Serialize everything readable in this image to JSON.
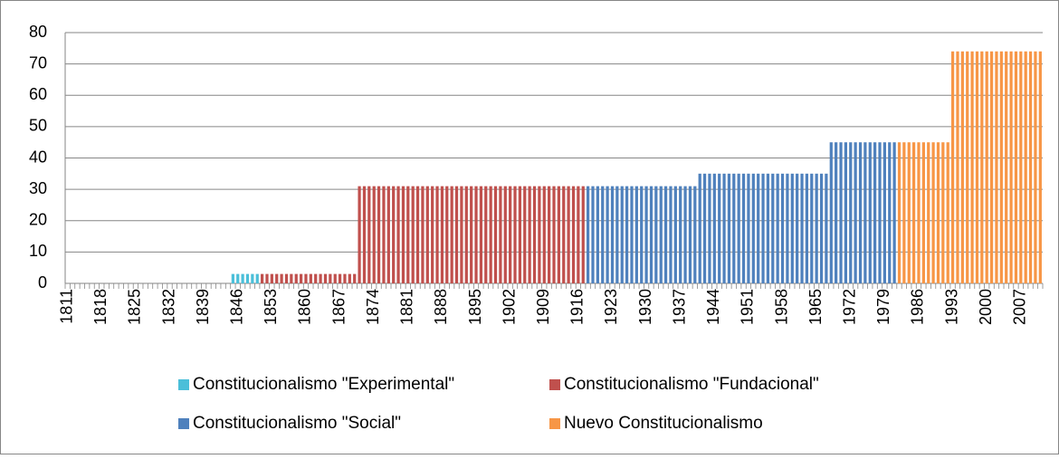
{
  "chart_data": {
    "type": "bar",
    "categories": [
      "1811",
      null,
      null,
      null,
      null,
      null,
      null,
      "1818",
      null,
      null,
      null,
      null,
      null,
      null,
      "1825",
      null,
      null,
      null,
      null,
      null,
      null,
      "1832",
      null,
      null,
      null,
      null,
      null,
      null,
      "1839",
      null,
      null,
      null,
      null,
      null,
      null,
      "1846",
      null,
      null,
      null,
      null,
      null,
      null,
      "1853",
      null,
      null,
      null,
      null,
      null,
      null,
      "1860",
      null,
      null,
      null,
      null,
      null,
      null,
      "1867",
      null,
      null,
      null,
      null,
      null,
      null,
      "1874",
      null,
      null,
      null,
      null,
      null,
      null,
      "1881",
      null,
      null,
      null,
      null,
      null,
      null,
      "1888",
      null,
      null,
      null,
      null,
      null,
      null,
      "1895",
      null,
      null,
      null,
      null,
      null,
      null,
      "1902",
      null,
      null,
      null,
      null,
      null,
      null,
      "1909",
      null,
      null,
      null,
      null,
      null,
      null,
      "1916",
      null,
      null,
      null,
      null,
      null,
      null,
      "1923",
      null,
      null,
      null,
      null,
      null,
      null,
      "1930",
      null,
      null,
      null,
      null,
      null,
      null,
      "1937",
      null,
      null,
      null,
      null,
      null,
      null,
      "1944",
      null,
      null,
      null,
      null,
      null,
      null,
      "1951",
      null,
      null,
      null,
      null,
      null,
      null,
      "1958",
      null,
      null,
      null,
      null,
      null,
      null,
      "1965",
      null,
      null,
      null,
      null,
      null,
      null,
      "1972",
      null,
      null,
      null,
      null,
      null,
      null,
      "1979",
      null,
      null,
      null,
      null,
      null,
      null,
      "1986",
      null,
      null,
      null,
      null,
      null,
      null,
      "1993",
      null,
      null,
      null,
      null,
      null,
      null,
      "2000",
      null,
      null,
      null,
      null,
      null,
      null,
      "2007",
      null,
      null,
      null,
      null
    ],
    "series": [
      {
        "name": "Constitucionalismo \"Experimental\"",
        "color": "#4bbfd9",
        "values": [
          null,
          null,
          null,
          null,
          null,
          null,
          null,
          null,
          null,
          null,
          null,
          null,
          null,
          null,
          null,
          null,
          null,
          null,
          null,
          null,
          null,
          null,
          null,
          null,
          null,
          null,
          null,
          null,
          null,
          null,
          null,
          null,
          null,
          null,
          3,
          3,
          3,
          3,
          3,
          3,
          null,
          null,
          null,
          null,
          null,
          null,
          null,
          null,
          null,
          null,
          null,
          null,
          null,
          null,
          null,
          null,
          null,
          null,
          null,
          null,
          null,
          null,
          null,
          null,
          null,
          null,
          null,
          null,
          null,
          null,
          null,
          null,
          null,
          null,
          null,
          null,
          null,
          null,
          null,
          null,
          null,
          null,
          null,
          null,
          null,
          null,
          null,
          null,
          null,
          null,
          null,
          null,
          null,
          null,
          null,
          null,
          null,
          null,
          null,
          null,
          null,
          null,
          null,
          null,
          null,
          null,
          null,
          null,
          null,
          null,
          null,
          null,
          null,
          null,
          null,
          null,
          null,
          null,
          null,
          null,
          null,
          null,
          null,
          null,
          null,
          null,
          null,
          null,
          null,
          null,
          null,
          null,
          null,
          null,
          null,
          null,
          null,
          null,
          null,
          null,
          null,
          null,
          null,
          null,
          null,
          null,
          null,
          null,
          null,
          null,
          null,
          null,
          null,
          null,
          null,
          null,
          null,
          null,
          null,
          null,
          null,
          null,
          null,
          null,
          null,
          null,
          null,
          null,
          null,
          null,
          null,
          null,
          null,
          null,
          null,
          null,
          null,
          null,
          null,
          null,
          null,
          null,
          null,
          null,
          null,
          null,
          null,
          null,
          null,
          null,
          null,
          null,
          null,
          null,
          null,
          null,
          null,
          null,
          null,
          null,
          null
        ]
      },
      {
        "name": "Constitucionalismo \"Fundacional\"",
        "color": "#c0504d",
        "values": [
          null,
          null,
          null,
          null,
          null,
          null,
          null,
          null,
          null,
          null,
          null,
          null,
          null,
          null,
          null,
          null,
          null,
          null,
          null,
          null,
          null,
          null,
          null,
          null,
          null,
          null,
          null,
          null,
          null,
          null,
          null,
          null,
          null,
          null,
          null,
          null,
          null,
          null,
          null,
          null,
          3,
          3,
          3,
          3,
          3,
          3,
          3,
          3,
          3,
          3,
          3,
          3,
          3,
          3,
          3,
          3,
          3,
          3,
          3,
          3,
          31,
          31,
          31,
          31,
          31,
          31,
          31,
          31,
          31,
          31,
          31,
          31,
          31,
          31,
          31,
          31,
          31,
          31,
          31,
          31,
          31,
          31,
          31,
          31,
          31,
          31,
          31,
          31,
          31,
          31,
          31,
          31,
          31,
          31,
          31,
          31,
          31,
          31,
          31,
          31,
          31,
          31,
          31,
          31,
          31,
          31,
          31,
          null,
          null,
          null,
          null,
          null,
          null,
          null,
          null,
          null,
          null,
          null,
          null,
          null,
          null,
          null,
          null,
          null,
          null,
          null,
          null,
          null,
          null,
          null,
          null,
          null,
          null,
          null,
          null,
          null,
          null,
          null,
          null,
          null,
          null,
          null,
          null,
          null,
          null,
          null,
          null,
          null,
          null,
          null,
          null,
          null,
          null,
          null,
          null,
          null,
          null,
          null,
          null,
          null,
          null,
          null,
          null,
          null,
          null,
          null,
          null,
          null,
          null,
          null,
          null,
          null,
          null,
          null,
          null,
          null,
          null,
          null,
          null,
          null,
          null,
          null,
          null,
          null,
          null,
          null,
          null,
          null,
          null,
          null,
          null,
          null,
          null,
          null,
          null,
          null,
          null,
          null,
          null,
          null,
          null
        ]
      },
      {
        "name": "Constitucionalismo \"Social\"",
        "color": "#4f81bd",
        "values": [
          null,
          null,
          null,
          null,
          null,
          null,
          null,
          null,
          null,
          null,
          null,
          null,
          null,
          null,
          null,
          null,
          null,
          null,
          null,
          null,
          null,
          null,
          null,
          null,
          null,
          null,
          null,
          null,
          null,
          null,
          null,
          null,
          null,
          null,
          null,
          null,
          null,
          null,
          null,
          null,
          null,
          null,
          null,
          null,
          null,
          null,
          null,
          null,
          null,
          null,
          null,
          null,
          null,
          null,
          null,
          null,
          null,
          null,
          null,
          null,
          null,
          null,
          null,
          null,
          null,
          null,
          null,
          null,
          null,
          null,
          null,
          null,
          null,
          null,
          null,
          null,
          null,
          null,
          null,
          null,
          null,
          null,
          null,
          null,
          null,
          null,
          null,
          null,
          null,
          null,
          null,
          null,
          null,
          null,
          null,
          null,
          null,
          null,
          null,
          null,
          null,
          null,
          null,
          null,
          null,
          null,
          null,
          31,
          31,
          31,
          31,
          31,
          31,
          31,
          31,
          31,
          31,
          31,
          31,
          31,
          31,
          31,
          31,
          31,
          31,
          31,
          31,
          31,
          31,
          31,
          35,
          35,
          35,
          35,
          35,
          35,
          35,
          35,
          35,
          35,
          35,
          35,
          35,
          35,
          35,
          35,
          35,
          35,
          35,
          35,
          35,
          35,
          35,
          35,
          35,
          35,
          35,
          45,
          45,
          45,
          45,
          45,
          45,
          45,
          45,
          45,
          45,
          45,
          45,
          45,
          45,
          null,
          null,
          null,
          null,
          null,
          null,
          null,
          null,
          null,
          null,
          null,
          null,
          null,
          null,
          null,
          null,
          null,
          null,
          null,
          null,
          null,
          null,
          null,
          null,
          null,
          null,
          null,
          null,
          null,
          null
        ]
      },
      {
        "name": "Nuevo Constitucionalismo",
        "color": "#f79646",
        "values": [
          null,
          null,
          null,
          null,
          null,
          null,
          null,
          null,
          null,
          null,
          null,
          null,
          null,
          null,
          null,
          null,
          null,
          null,
          null,
          null,
          null,
          null,
          null,
          null,
          null,
          null,
          null,
          null,
          null,
          null,
          null,
          null,
          null,
          null,
          null,
          null,
          null,
          null,
          null,
          null,
          null,
          null,
          null,
          null,
          null,
          null,
          null,
          null,
          null,
          null,
          null,
          null,
          null,
          null,
          null,
          null,
          null,
          null,
          null,
          null,
          null,
          null,
          null,
          null,
          null,
          null,
          null,
          null,
          null,
          null,
          null,
          null,
          null,
          null,
          null,
          null,
          null,
          null,
          null,
          null,
          null,
          null,
          null,
          null,
          null,
          null,
          null,
          null,
          null,
          null,
          null,
          null,
          null,
          null,
          null,
          null,
          null,
          null,
          null,
          null,
          null,
          null,
          null,
          null,
          null,
          null,
          null,
          null,
          null,
          null,
          null,
          null,
          null,
          null,
          null,
          null,
          null,
          null,
          null,
          null,
          null,
          null,
          null,
          null,
          null,
          null,
          null,
          null,
          null,
          null,
          null,
          null,
          null,
          null,
          null,
          null,
          null,
          null,
          null,
          null,
          null,
          null,
          null,
          null,
          null,
          null,
          null,
          null,
          null,
          null,
          null,
          null,
          null,
          null,
          null,
          null,
          null,
          null,
          null,
          null,
          null,
          null,
          null,
          null,
          null,
          null,
          null,
          null,
          null,
          null,
          null,
          45,
          45,
          45,
          45,
          45,
          45,
          45,
          45,
          45,
          45,
          45,
          74,
          74,
          74,
          74,
          74,
          74,
          74,
          74,
          74,
          74,
          74,
          74,
          74,
          74,
          74,
          74,
          74,
          74,
          74
        ]
      }
    ],
    "ylim": [
      0,
      80
    ],
    "yticks": [
      0,
      10,
      20,
      30,
      40,
      50,
      60,
      70,
      80
    ],
    "grid": true,
    "legend": "bottom"
  }
}
